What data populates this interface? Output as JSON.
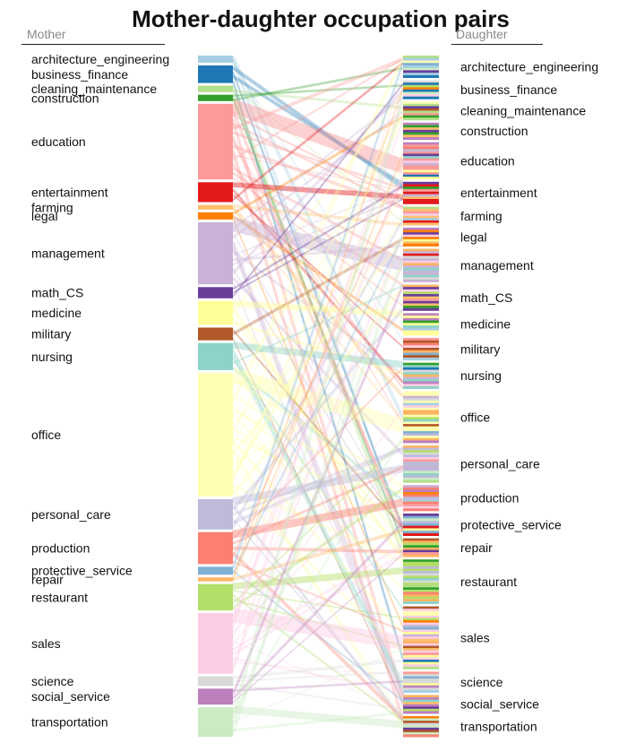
{
  "chart_data": {
    "type": "parallel-sets",
    "title": "Mother-daughter occupation pairs",
    "left_axis_label": "Mother",
    "right_axis_label": "Daughter",
    "categories": [
      "architecture_engineering",
      "business_finance",
      "cleaning_maintenance",
      "construction",
      "education",
      "entertainment",
      "farming",
      "legal",
      "management",
      "math_CS",
      "medicine",
      "military",
      "nursing",
      "office",
      "personal_care",
      "production",
      "protective_service",
      "repair",
      "restaurant",
      "sales",
      "science",
      "social_service",
      "transportation"
    ],
    "mother_shares": [
      0.9,
      2.2,
      0.8,
      0.8,
      9.5,
      2.5,
      0.6,
      0.9,
      7.8,
      1.4,
      3.0,
      1.6,
      3.4,
      15.5,
      3.8,
      4.0,
      1.0,
      0.5,
      3.3,
      7.6,
      1.2,
      2.0,
      3.7
    ],
    "daughter_shares": [
      3.0,
      2.5,
      2.5,
      2.3,
      5.0,
      3.0,
      2.5,
      2.5,
      4.5,
      3.5,
      3.0,
      3.0,
      3.5,
      7.0,
      5.0,
      3.5,
      3.0,
      2.5,
      6.0,
      8.5,
      2.8,
      2.5,
      2.8
    ],
    "colors": {
      "architecture_engineering": "#a6cee3",
      "business_finance": "#1f78b4",
      "cleaning_maintenance": "#b2df8a",
      "construction": "#33a02c",
      "education": "#fb9a99",
      "entertainment": "#e31a1c",
      "farming": "#fdbf6f",
      "legal": "#ff7f00",
      "management": "#cab2d6",
      "math_CS": "#6a3d9a",
      "medicine": "#ffff99",
      "military": "#b15928",
      "nursing": "#8dd3c7",
      "office": "#ffffb3",
      "personal_care": "#bebada",
      "production": "#fb8072",
      "protective_service": "#80b1d3",
      "repair": "#fdb462",
      "restaurant": "#b3de69",
      "sales": "#fccde5",
      "science": "#d9d9d9",
      "social_service": "#bc80bd",
      "transportation": "#ccebc5"
    }
  }
}
